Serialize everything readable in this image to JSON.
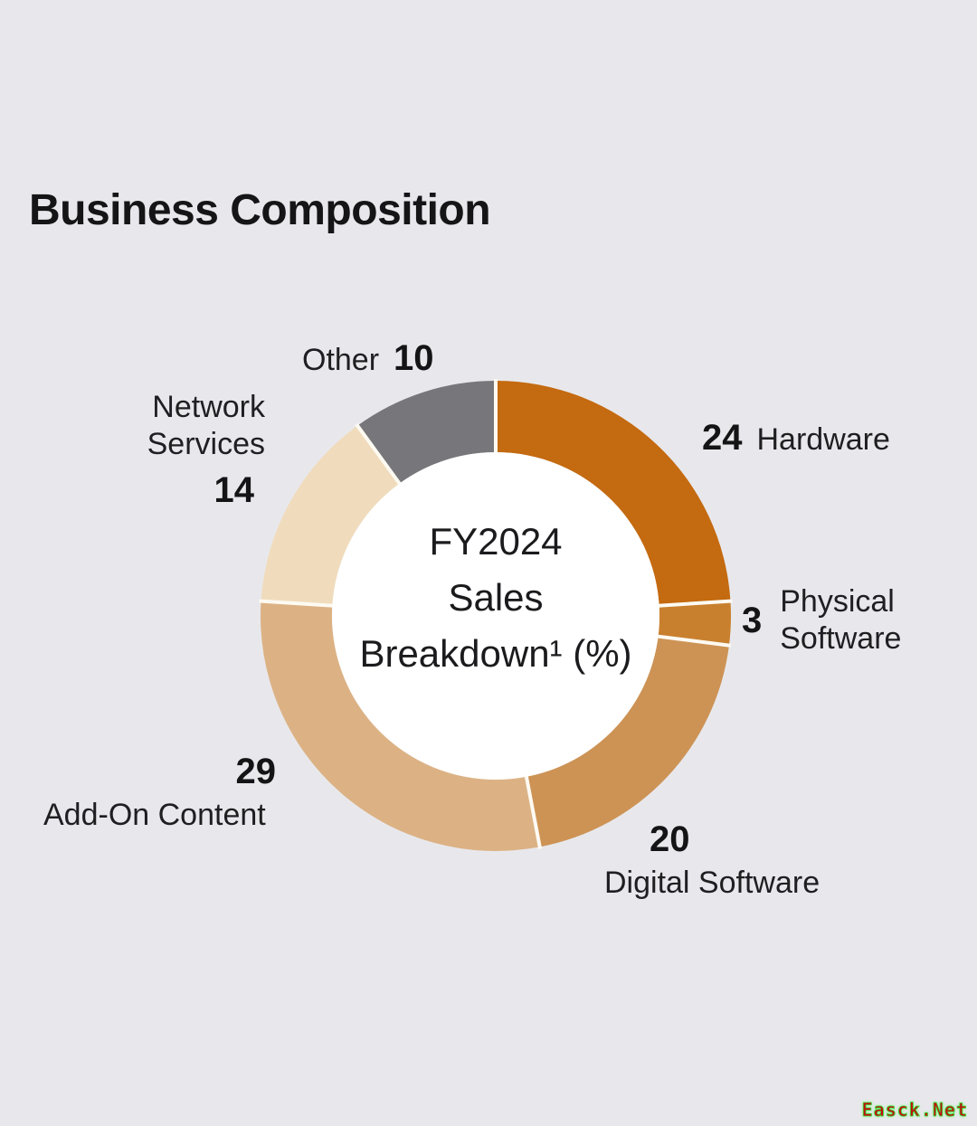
{
  "page": {
    "background_color": "#e8e8ec",
    "title": "Business Composition"
  },
  "chart_data": {
    "type": "pie",
    "subtype": "donut",
    "title": "Business Composition",
    "unit": "%",
    "direction": "clockwise",
    "start_angle_deg": 0,
    "legend_position": "callouts-around-chart",
    "center_lines": [
      "FY2024",
      "Sales",
      "Breakdown¹ (%)"
    ],
    "center_hole_color": "#ffffff",
    "separator_color": "#fdfaf2",
    "segments": [
      {
        "label": "Hardware",
        "value": 24,
        "color": "#c46a10"
      },
      {
        "label": "Physical Software",
        "value": 3,
        "color": "#c9802e",
        "label_lines": [
          "Physical",
          "Software"
        ]
      },
      {
        "label": "Digital Software",
        "value": 20,
        "color": "#cd9355"
      },
      {
        "label": "Add-On Content",
        "value": 29,
        "color": "#dcb285"
      },
      {
        "label": "Network Services",
        "value": 14,
        "color": "#f0dcbc",
        "label_lines": [
          "Network",
          "Services"
        ]
      },
      {
        "label": "Other",
        "value": 10,
        "color": "#77767a"
      }
    ]
  },
  "watermark": {
    "text": "Easck.Net",
    "text_color": "#c01010",
    "glow_color": "#35dd35"
  }
}
